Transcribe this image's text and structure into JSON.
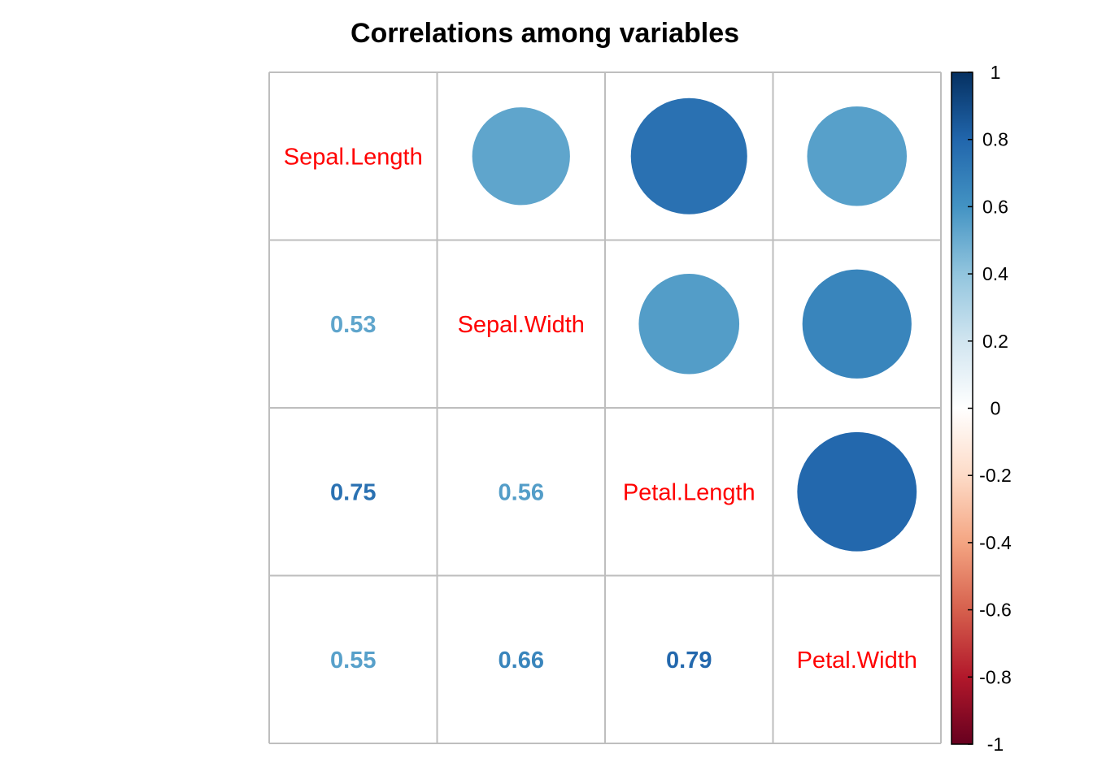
{
  "chart_data": {
    "type": "heatmap",
    "title": "Correlations among variables",
    "variables": [
      "Sepal.Length",
      "Sepal.Width",
      "Petal.Length",
      "Petal.Width"
    ],
    "matrix": [
      [
        1.0,
        0.53,
        0.75,
        0.55
      ],
      [
        0.53,
        1.0,
        0.56,
        0.66
      ],
      [
        0.75,
        0.56,
        1.0,
        0.79
      ],
      [
        0.55,
        0.66,
        0.79,
        1.0
      ]
    ],
    "upper_method": "circle",
    "lower_method": "number",
    "diagonal": "variable names",
    "label_color": "#FF0000",
    "grid": true,
    "colorbar": {
      "range": [
        -1,
        1
      ],
      "ticks": [
        "1",
        "0.8",
        "0.6",
        "0.4",
        "0.2",
        "0",
        "-0.2",
        "-0.4",
        "-0.6",
        "-0.8",
        "-1"
      ],
      "palette": [
        "#67001F",
        "#B2182B",
        "#D6604D",
        "#F4A582",
        "#FDDBC7",
        "#FFFFFF",
        "#D1E5F0",
        "#92C5DE",
        "#4393C3",
        "#2166AC",
        "#053061"
      ],
      "placement": "right"
    }
  }
}
